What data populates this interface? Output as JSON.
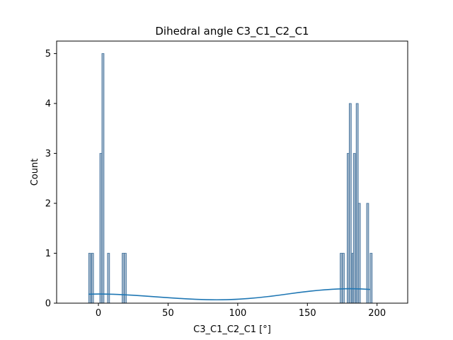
{
  "chart_data": {
    "type": "histogram",
    "title": "Dihedral angle C3_C1_C2_C1",
    "xlabel": "C3_C1_C2_C1 [°]",
    "ylabel": "Count",
    "xlim": [
      -30,
      222
    ],
    "ylim": [
      0,
      5.25
    ],
    "xticks": [
      0,
      50,
      100,
      150,
      200
    ],
    "yticks": [
      0,
      1,
      2,
      3,
      4,
      5
    ],
    "bin_width": 1.5,
    "bars": [
      {
        "x": -7.0,
        "count": 1
      },
      {
        "x": -5.0,
        "count": 1
      },
      {
        "x": 1.0,
        "count": 3
      },
      {
        "x": 2.5,
        "count": 5
      },
      {
        "x": 6.5,
        "count": 1
      },
      {
        "x": 17.0,
        "count": 1
      },
      {
        "x": 18.5,
        "count": 1
      },
      {
        "x": 173.5,
        "count": 1
      },
      {
        "x": 175.0,
        "count": 1
      },
      {
        "x": 178.5,
        "count": 3
      },
      {
        "x": 180.0,
        "count": 4
      },
      {
        "x": 182.0,
        "count": 1
      },
      {
        "x": 183.0,
        "count": 3
      },
      {
        "x": 185.0,
        "count": 4
      },
      {
        "x": 186.5,
        "count": 2
      },
      {
        "x": 192.5,
        "count": 2
      },
      {
        "x": 195.0,
        "count": 1
      }
    ],
    "kde": {
      "x": [
        -7,
        0,
        10,
        25,
        40,
        55,
        70,
        85,
        100,
        115,
        130,
        145,
        160,
        175,
        185,
        195
      ],
      "y": [
        0.18,
        0.185,
        0.18,
        0.16,
        0.13,
        0.1,
        0.075,
        0.065,
        0.075,
        0.11,
        0.16,
        0.22,
        0.265,
        0.29,
        0.29,
        0.275
      ]
    },
    "colors": {
      "bar_fill": "#a3b8cc",
      "bar_edge": "#3c6d99",
      "kde_line": "#1f77b4"
    },
    "grid": false,
    "legend": "none"
  }
}
